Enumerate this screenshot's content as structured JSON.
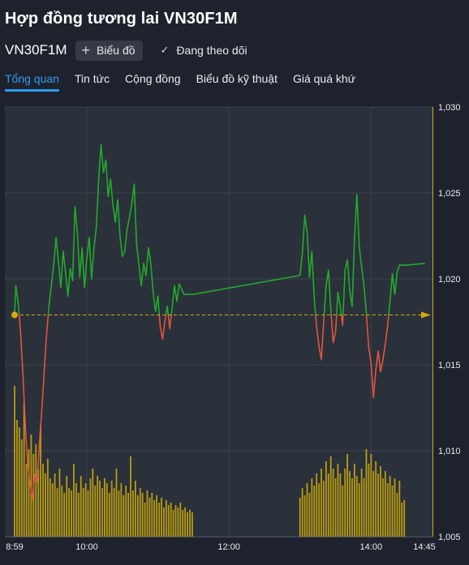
{
  "page": {
    "title": "Hợp đồng tương lai VN30F1M",
    "symbol": "VN30F1M",
    "chart_button": "Biểu đồ",
    "follow_label": "Đang theo dõi"
  },
  "tabs": [
    {
      "label": "Tổng quan",
      "active": true
    },
    {
      "label": "Tin tức",
      "active": false
    },
    {
      "label": "Cộng đồng",
      "active": false
    },
    {
      "label": "Biểu đồ kỹ thuật",
      "active": false
    },
    {
      "label": "Giá quá khứ",
      "active": false
    }
  ],
  "colors": {
    "background": "#1e222d",
    "plot_bg": "#2a313b",
    "up": "#22ab2a",
    "down": "#e5533f",
    "volume": "#c9a80c",
    "reference": "#d4aa12",
    "tab_active": "#2f9cf2"
  },
  "chart_data": {
    "type": "line",
    "reference_price": 1017.9,
    "ylim": [
      1005,
      1030
    ],
    "y_ticks": [
      "1,030",
      "1,025",
      "1,020",
      "1,015",
      "1,010",
      "1,005"
    ],
    "x_ticks": [
      "8:59",
      "10:00",
      "12:00",
      "14:00",
      "14:45"
    ],
    "x_range": [
      "08:59",
      "14:45"
    ],
    "grid": true,
    "price_series": [
      [
        "08:59",
        1018.0
      ],
      [
        "09:00",
        1019.6
      ],
      [
        "09:02",
        1018.6
      ],
      [
        "09:04",
        1016.9
      ],
      [
        "09:06",
        1014.5
      ],
      [
        "09:08",
        1011.5
      ],
      [
        "09:10",
        1009.2
      ],
      [
        "09:12",
        1008.1
      ],
      [
        "09:14",
        1007.2
      ],
      [
        "09:16",
        1008.6
      ],
      [
        "09:18",
        1008.2
      ],
      [
        "09:20",
        1010.5
      ],
      [
        "09:22",
        1012.4
      ],
      [
        "09:24",
        1014.6
      ],
      [
        "09:26",
        1016.8
      ],
      [
        "09:28",
        1018.4
      ],
      [
        "09:30",
        1019.6
      ],
      [
        "09:32",
        1020.8
      ],
      [
        "09:34",
        1022.4
      ],
      [
        "09:36",
        1021.0
      ],
      [
        "09:38",
        1019.5
      ],
      [
        "09:40",
        1021.6
      ],
      [
        "09:42",
        1020.4
      ],
      [
        "09:44",
        1019.0
      ],
      [
        "09:46",
        1020.6
      ],
      [
        "09:48",
        1019.9
      ],
      [
        "09:50",
        1024.2
      ],
      [
        "09:52",
        1022.7
      ],
      [
        "09:54",
        1020.1
      ],
      [
        "09:56",
        1021.8
      ],
      [
        "09:58",
        1019.5
      ],
      [
        "10:00",
        1021.2
      ],
      [
        "10:02",
        1022.4
      ],
      [
        "10:04",
        1020.0
      ],
      [
        "10:06",
        1021.8
      ],
      [
        "10:08",
        1023.0
      ],
      [
        "10:10",
        1025.8
      ],
      [
        "10:12",
        1027.8
      ],
      [
        "10:14",
        1026.2
      ],
      [
        "10:16",
        1026.9
      ],
      [
        "10:18",
        1024.8
      ],
      [
        "10:20",
        1025.8
      ],
      [
        "10:22",
        1024.3
      ],
      [
        "10:24",
        1023.3
      ],
      [
        "10:26",
        1024.6
      ],
      [
        "10:28",
        1022.5
      ],
      [
        "10:30",
        1021.3
      ],
      [
        "10:32",
        1021.6
      ],
      [
        "10:34",
        1022.9
      ],
      [
        "10:36",
        1023.6
      ],
      [
        "10:38",
        1024.4
      ],
      [
        "10:40",
        1025.5
      ],
      [
        "10:42",
        1022.0
      ],
      [
        "10:44",
        1020.8
      ],
      [
        "10:46",
        1019.6
      ],
      [
        "10:48",
        1020.9
      ],
      [
        "10:50",
        1020.2
      ],
      [
        "10:52",
        1021.8
      ],
      [
        "10:54",
        1020.9
      ],
      [
        "10:56",
        1019.2
      ],
      [
        "10:58",
        1018.1
      ],
      [
        "11:00",
        1019.0
      ],
      [
        "11:02",
        1017.2
      ],
      [
        "11:04",
        1016.5
      ],
      [
        "11:06",
        1017.6
      ],
      [
        "11:08",
        1018.4
      ],
      [
        "11:10",
        1017.1
      ],
      [
        "11:12",
        1018.3
      ],
      [
        "11:14",
        1019.6
      ],
      [
        "11:16",
        1018.7
      ],
      [
        "11:18",
        1019.7
      ],
      [
        "11:20",
        1019.4
      ],
      [
        "11:22",
        1019.1
      ],
      [
        "11:30",
        1019.1
      ],
      [
        "13:00",
        1020.2
      ],
      [
        "13:02",
        1021.5
      ],
      [
        "13:04",
        1023.7
      ],
      [
        "13:06",
        1022.7
      ],
      [
        "13:08",
        1020.1
      ],
      [
        "13:10",
        1021.6
      ],
      [
        "13:12",
        1018.9
      ],
      [
        "13:14",
        1017.2
      ],
      [
        "13:16",
        1016.1
      ],
      [
        "13:18",
        1015.3
      ],
      [
        "13:20",
        1017.5
      ],
      [
        "13:22",
        1019.6
      ],
      [
        "13:24",
        1020.5
      ],
      [
        "13:26",
        1018.2
      ],
      [
        "13:28",
        1016.3
      ],
      [
        "13:30",
        1016.9
      ],
      [
        "13:32",
        1019.2
      ],
      [
        "13:34",
        1018.4
      ],
      [
        "13:36",
        1017.3
      ],
      [
        "13:38",
        1020.5
      ],
      [
        "13:40",
        1021.1
      ],
      [
        "13:42",
        1019.3
      ],
      [
        "13:44",
        1018.4
      ],
      [
        "13:46",
        1022.3
      ],
      [
        "13:48",
        1024.9
      ],
      [
        "13:50",
        1021.9
      ],
      [
        "13:52",
        1020.7
      ],
      [
        "13:54",
        1019.6
      ],
      [
        "13:56",
        1018.0
      ],
      [
        "13:58",
        1016.0
      ],
      [
        "14:00",
        1015.1
      ],
      [
        "14:02",
        1013.1
      ],
      [
        "14:04",
        1014.7
      ],
      [
        "14:06",
        1015.8
      ],
      [
        "14:08",
        1014.6
      ],
      [
        "14:10",
        1015.3
      ],
      [
        "14:12",
        1016.2
      ],
      [
        "14:14",
        1017.3
      ],
      [
        "14:16",
        1018.7
      ],
      [
        "14:18",
        1020.3
      ],
      [
        "14:20",
        1019.1
      ],
      [
        "14:22",
        1020.4
      ],
      [
        "14:24",
        1020.8
      ],
      [
        "14:30",
        1020.8
      ],
      [
        "14:45",
        1020.9
      ]
    ],
    "volume_note": "volume bars at the bottom of the chart (no volume scale printed)",
    "volume_series": [
      [
        "08:59",
        62
      ],
      [
        "09:01",
        48
      ],
      [
        "09:03",
        45
      ],
      [
        "09:05",
        40
      ],
      [
        "09:07",
        55
      ],
      [
        "09:09",
        30
      ],
      [
        "09:11",
        36
      ],
      [
        "09:13",
        42
      ],
      [
        "09:15",
        34
      ],
      [
        "09:17",
        38
      ],
      [
        "09:19",
        28
      ],
      [
        "09:21",
        46
      ],
      [
        "09:23",
        30
      ],
      [
        "09:25",
        26
      ],
      [
        "09:27",
        32
      ],
      [
        "09:29",
        24
      ],
      [
        "09:31",
        22
      ],
      [
        "09:33",
        26
      ],
      [
        "09:35",
        20
      ],
      [
        "09:37",
        28
      ],
      [
        "09:39",
        21
      ],
      [
        "09:41",
        18
      ],
      [
        "09:43",
        25
      ],
      [
        "09:45",
        20
      ],
      [
        "09:47",
        19
      ],
      [
        "09:49",
        30
      ],
      [
        "09:51",
        22
      ],
      [
        "09:53",
        18
      ],
      [
        "09:55",
        25
      ],
      [
        "09:57",
        20
      ],
      [
        "09:59",
        22
      ],
      [
        "10:01",
        19
      ],
      [
        "10:03",
        24
      ],
      [
        "10:05",
        28
      ],
      [
        "10:07",
        21
      ],
      [
        "10:09",
        25
      ],
      [
        "10:11",
        23
      ],
      [
        "10:13",
        20
      ],
      [
        "10:15",
        24
      ],
      [
        "10:17",
        22
      ],
      [
        "10:19",
        18
      ],
      [
        "10:21",
        23
      ],
      [
        "10:23",
        20
      ],
      [
        "10:25",
        28
      ],
      [
        "10:27",
        19
      ],
      [
        "10:29",
        22
      ],
      [
        "10:31",
        17
      ],
      [
        "10:33",
        21
      ],
      [
        "10:35",
        18
      ],
      [
        "10:37",
        33
      ],
      [
        "10:39",
        19
      ],
      [
        "10:41",
        23
      ],
      [
        "10:43",
        17
      ],
      [
        "10:45",
        20
      ],
      [
        "10:47",
        18
      ],
      [
        "10:49",
        14
      ],
      [
        "10:51",
        19
      ],
      [
        "10:53",
        16
      ],
      [
        "10:55",
        18
      ],
      [
        "10:57",
        15
      ],
      [
        "10:59",
        17
      ],
      [
        "11:01",
        14
      ],
      [
        "11:03",
        16
      ],
      [
        "11:05",
        12
      ],
      [
        "11:07",
        15
      ],
      [
        "11:09",
        13
      ],
      [
        "11:11",
        14
      ],
      [
        "11:13",
        11
      ],
      [
        "11:15",
        13
      ],
      [
        "11:17",
        12
      ],
      [
        "11:19",
        14
      ],
      [
        "11:21",
        11
      ],
      [
        "11:23",
        12
      ],
      [
        "11:25",
        10
      ],
      [
        "11:27",
        11
      ],
      [
        "11:29",
        10
      ],
      [
        "13:00",
        16
      ],
      [
        "13:02",
        20
      ],
      [
        "13:04",
        17
      ],
      [
        "13:06",
        22
      ],
      [
        "13:08",
        18
      ],
      [
        "13:10",
        24
      ],
      [
        "13:12",
        21
      ],
      [
        "13:14",
        26
      ],
      [
        "13:16",
        22
      ],
      [
        "13:18",
        28
      ],
      [
        "13:20",
        23
      ],
      [
        "13:22",
        31
      ],
      [
        "13:24",
        26
      ],
      [
        "13:26",
        33
      ],
      [
        "13:28",
        28
      ],
      [
        "13:30",
        24
      ],
      [
        "13:32",
        30
      ],
      [
        "13:34",
        26
      ],
      [
        "13:36",
        21
      ],
      [
        "13:38",
        28
      ],
      [
        "13:40",
        34
      ],
      [
        "13:42",
        27
      ],
      [
        "13:44",
        24
      ],
      [
        "13:46",
        30
      ],
      [
        "13:48",
        25
      ],
      [
        "13:50",
        22
      ],
      [
        "13:52",
        28
      ],
      [
        "13:54",
        24
      ],
      [
        "13:56",
        36
      ],
      [
        "13:58",
        30
      ],
      [
        "14:00",
        34
      ],
      [
        "14:02",
        27
      ],
      [
        "14:04",
        31
      ],
      [
        "14:06",
        26
      ],
      [
        "14:08",
        29
      ],
      [
        "14:10",
        24
      ],
      [
        "14:12",
        27
      ],
      [
        "14:14",
        22
      ],
      [
        "14:16",
        25
      ],
      [
        "14:18",
        21
      ],
      [
        "14:20",
        24
      ],
      [
        "14:22",
        18
      ],
      [
        "14:24",
        23
      ],
      [
        "14:26",
        14
      ],
      [
        "14:28",
        15
      ]
    ]
  }
}
